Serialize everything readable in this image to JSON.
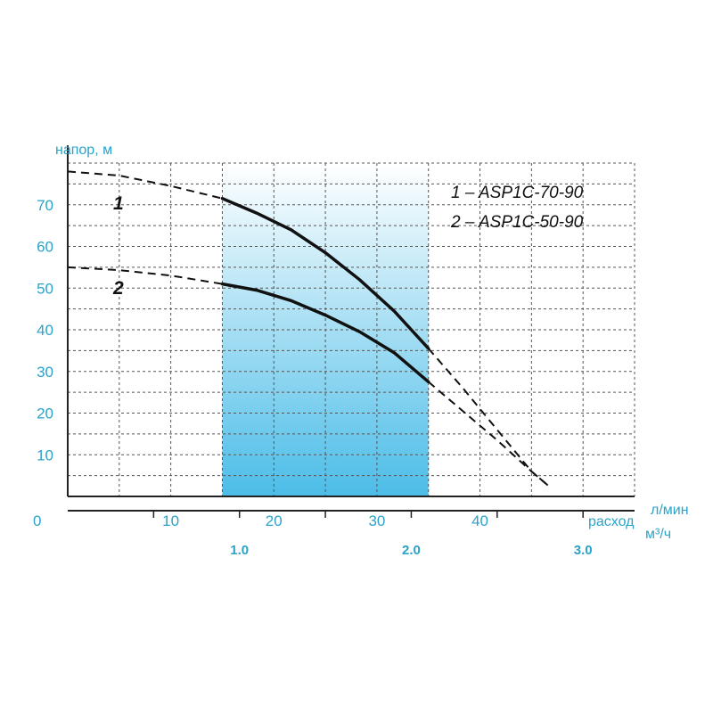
{
  "chart_data": {
    "type": "line",
    "y_title": "напор, м",
    "x_title_lmin": "л/мин",
    "x_title_m3h": "м³/ч",
    "x_title_flow": "расход",
    "origin_label": "0",
    "y_ticks": [
      "10",
      "20",
      "30",
      "40",
      "50",
      "60",
      "70"
    ],
    "x_ticks_lmin": [
      "10",
      "20",
      "30",
      "40"
    ],
    "x_ticks_m3h": [
      "1.0",
      "2.0",
      "3.0"
    ],
    "ylim": [
      0,
      80
    ],
    "xlim_m3h": [
      0,
      3.3
    ],
    "grid": true,
    "working_range_m3h": [
      0.9,
      2.1
    ],
    "colors": {
      "axis_text": "#2aa3c9",
      "curve": "#111111",
      "fill_top": "#ffffff",
      "fill_bottom": "#4cbde8"
    },
    "series": [
      {
        "label": "1",
        "legend": "1 – ASP1C-70-90",
        "dashed_start": [
          [
            0,
            78
          ],
          [
            0.3,
            77
          ],
          [
            0.6,
            74.5
          ],
          [
            0.9,
            71.5
          ]
        ],
        "solid": [
          [
            0.9,
            71.5
          ],
          [
            1.1,
            68
          ],
          [
            1.3,
            64
          ],
          [
            1.5,
            58.5
          ],
          [
            1.7,
            52
          ],
          [
            1.9,
            44.5
          ],
          [
            2.1,
            35.5
          ]
        ],
        "dashed_end": [
          [
            2.1,
            35.5
          ],
          [
            2.3,
            26
          ],
          [
            2.5,
            16
          ],
          [
            2.7,
            6
          ],
          [
            2.8,
            2.5
          ]
        ]
      },
      {
        "label": "2",
        "legend": "2 – ASP1C-50-90",
        "dashed_start": [
          [
            0,
            55
          ],
          [
            0.3,
            54.3
          ],
          [
            0.6,
            53
          ],
          [
            0.9,
            51
          ]
        ],
        "solid": [
          [
            0.9,
            51
          ],
          [
            1.1,
            49.5
          ],
          [
            1.3,
            47
          ],
          [
            1.5,
            43.5
          ],
          [
            1.7,
            39.5
          ],
          [
            1.9,
            34.5
          ],
          [
            2.1,
            27.5
          ]
        ],
        "dashed_end": [
          [
            2.1,
            27.5
          ],
          [
            2.3,
            20.5
          ],
          [
            2.5,
            13.5
          ],
          [
            2.7,
            6
          ],
          [
            2.8,
            2.5
          ]
        ]
      }
    ]
  }
}
